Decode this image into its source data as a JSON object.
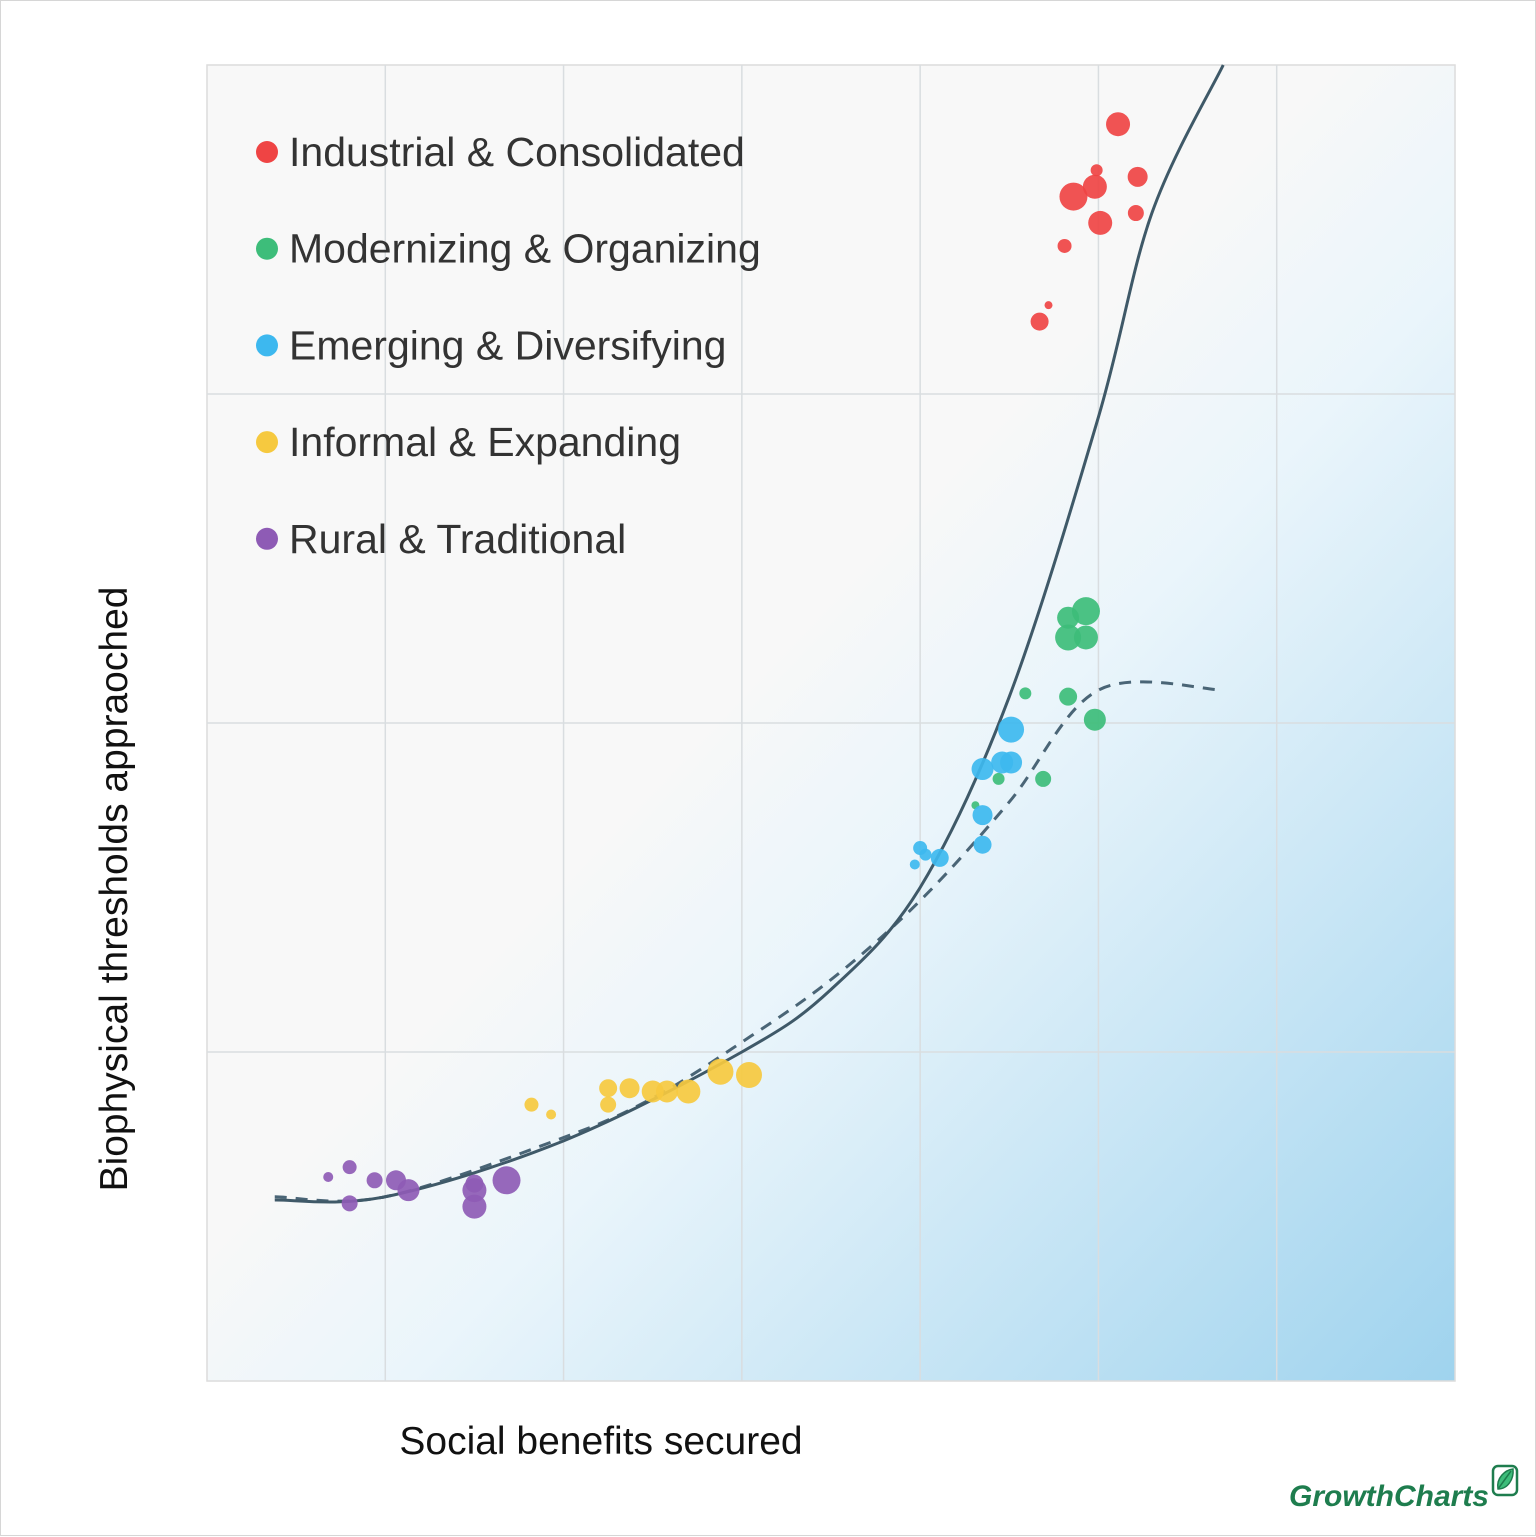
{
  "chart_data": {
    "type": "scatter",
    "xlabel": "Social benefits secured",
    "ylabel": "Biophysical thresholds appraoched",
    "xlim": [
      0,
      7
    ],
    "ylim": [
      0,
      4
    ],
    "grid": true,
    "legend_position": "top-left",
    "series": [
      {
        "name": "Industrial & Consolidated",
        "color": "#ef4444",
        "points": [
          {
            "x": 5.11,
            "y": 3.82,
            "size": 12
          },
          {
            "x": 5.22,
            "y": 3.66,
            "size": 10
          },
          {
            "x": 4.99,
            "y": 3.68,
            "size": 6
          },
          {
            "x": 4.98,
            "y": 3.63,
            "size": 12
          },
          {
            "x": 4.86,
            "y": 3.6,
            "size": 14
          },
          {
            "x": 5.01,
            "y": 3.52,
            "size": 12
          },
          {
            "x": 5.21,
            "y": 3.55,
            "size": 8
          },
          {
            "x": 4.81,
            "y": 3.45,
            "size": 7
          },
          {
            "x": 4.72,
            "y": 3.27,
            "size": 4
          },
          {
            "x": 4.67,
            "y": 3.22,
            "size": 9
          }
        ]
      },
      {
        "name": "Modernizing & Organizing",
        "color": "#3dbd7a",
        "points": [
          {
            "x": 4.93,
            "y": 2.34,
            "size": 14
          },
          {
            "x": 4.83,
            "y": 2.32,
            "size": 11
          },
          {
            "x": 4.83,
            "y": 2.26,
            "size": 13
          },
          {
            "x": 4.93,
            "y": 2.26,
            "size": 12
          },
          {
            "x": 4.59,
            "y": 2.09,
            "size": 6
          },
          {
            "x": 4.83,
            "y": 2.08,
            "size": 9
          },
          {
            "x": 4.98,
            "y": 2.01,
            "size": 11
          },
          {
            "x": 4.44,
            "y": 1.83,
            "size": 6
          },
          {
            "x": 4.69,
            "y": 1.83,
            "size": 8
          },
          {
            "x": 4.31,
            "y": 1.75,
            "size": 4
          }
        ]
      },
      {
        "name": "Emerging & Diversifying",
        "color": "#3db8ef",
        "points": [
          {
            "x": 4.51,
            "y": 1.98,
            "size": 13
          },
          {
            "x": 4.51,
            "y": 1.88,
            "size": 11
          },
          {
            "x": 4.46,
            "y": 1.88,
            "size": 11
          },
          {
            "x": 4.35,
            "y": 1.86,
            "size": 11
          },
          {
            "x": 4.35,
            "y": 1.72,
            "size": 10
          },
          {
            "x": 4.35,
            "y": 1.63,
            "size": 9
          },
          {
            "x": 4.0,
            "y": 1.62,
            "size": 7
          },
          {
            "x": 4.03,
            "y": 1.6,
            "size": 6
          },
          {
            "x": 4.11,
            "y": 1.59,
            "size": 9
          },
          {
            "x": 3.97,
            "y": 1.57,
            "size": 5
          }
        ]
      },
      {
        "name": "Informal & Expanding",
        "color": "#f6c93f",
        "points": [
          {
            "x": 2.25,
            "y": 0.89,
            "size": 9
          },
          {
            "x": 2.37,
            "y": 0.89,
            "size": 10
          },
          {
            "x": 2.5,
            "y": 0.88,
            "size": 11
          },
          {
            "x": 2.58,
            "y": 0.88,
            "size": 11
          },
          {
            "x": 2.7,
            "y": 0.88,
            "size": 12
          },
          {
            "x": 3.04,
            "y": 0.93,
            "size": 13
          },
          {
            "x": 2.25,
            "y": 0.84,
            "size": 8
          },
          {
            "x": 1.82,
            "y": 0.84,
            "size": 7
          },
          {
            "x": 1.93,
            "y": 0.81,
            "size": 5
          },
          {
            "x": 2.88,
            "y": 0.94,
            "size": 13
          }
        ]
      },
      {
        "name": "Rural & Traditional",
        "color": "#8e5bb5",
        "points": [
          {
            "x": 0.8,
            "y": 0.65,
            "size": 7
          },
          {
            "x": 0.68,
            "y": 0.62,
            "size": 5
          },
          {
            "x": 0.94,
            "y": 0.61,
            "size": 8
          },
          {
            "x": 1.06,
            "y": 0.61,
            "size": 10
          },
          {
            "x": 1.13,
            "y": 0.58,
            "size": 11
          },
          {
            "x": 1.5,
            "y": 0.58,
            "size": 12
          },
          {
            "x": 1.68,
            "y": 0.61,
            "size": 14
          },
          {
            "x": 0.8,
            "y": 0.54,
            "size": 8
          },
          {
            "x": 1.5,
            "y": 0.53,
            "size": 12
          },
          {
            "x": 1.5,
            "y": 0.6,
            "size": 9
          }
        ]
      }
    ],
    "trend_solid": [
      [
        0.38,
        0.55
      ],
      [
        1.0,
        0.56
      ],
      [
        2.0,
        0.73
      ],
      [
        3.0,
        1.0
      ],
      [
        3.5,
        1.19
      ],
      [
        4.0,
        1.5
      ],
      [
        4.5,
        2.08
      ],
      [
        5.0,
        2.93
      ],
      [
        5.3,
        3.55
      ],
      [
        5.7,
        4.0
      ]
    ],
    "trend_dashed": [
      [
        0.38,
        0.56
      ],
      [
        1.0,
        0.56
      ],
      [
        2.0,
        0.74
      ],
      [
        2.5,
        0.86
      ],
      [
        3.0,
        1.03
      ],
      [
        3.5,
        1.22
      ],
      [
        4.0,
        1.46
      ],
      [
        4.5,
        1.76
      ],
      [
        5.0,
        2.1
      ],
      [
        5.7,
        2.1
      ]
    ]
  },
  "brand": {
    "name": "GrowthCharts",
    "icon": "leaf-icon",
    "color": "#1e7d4e"
  }
}
